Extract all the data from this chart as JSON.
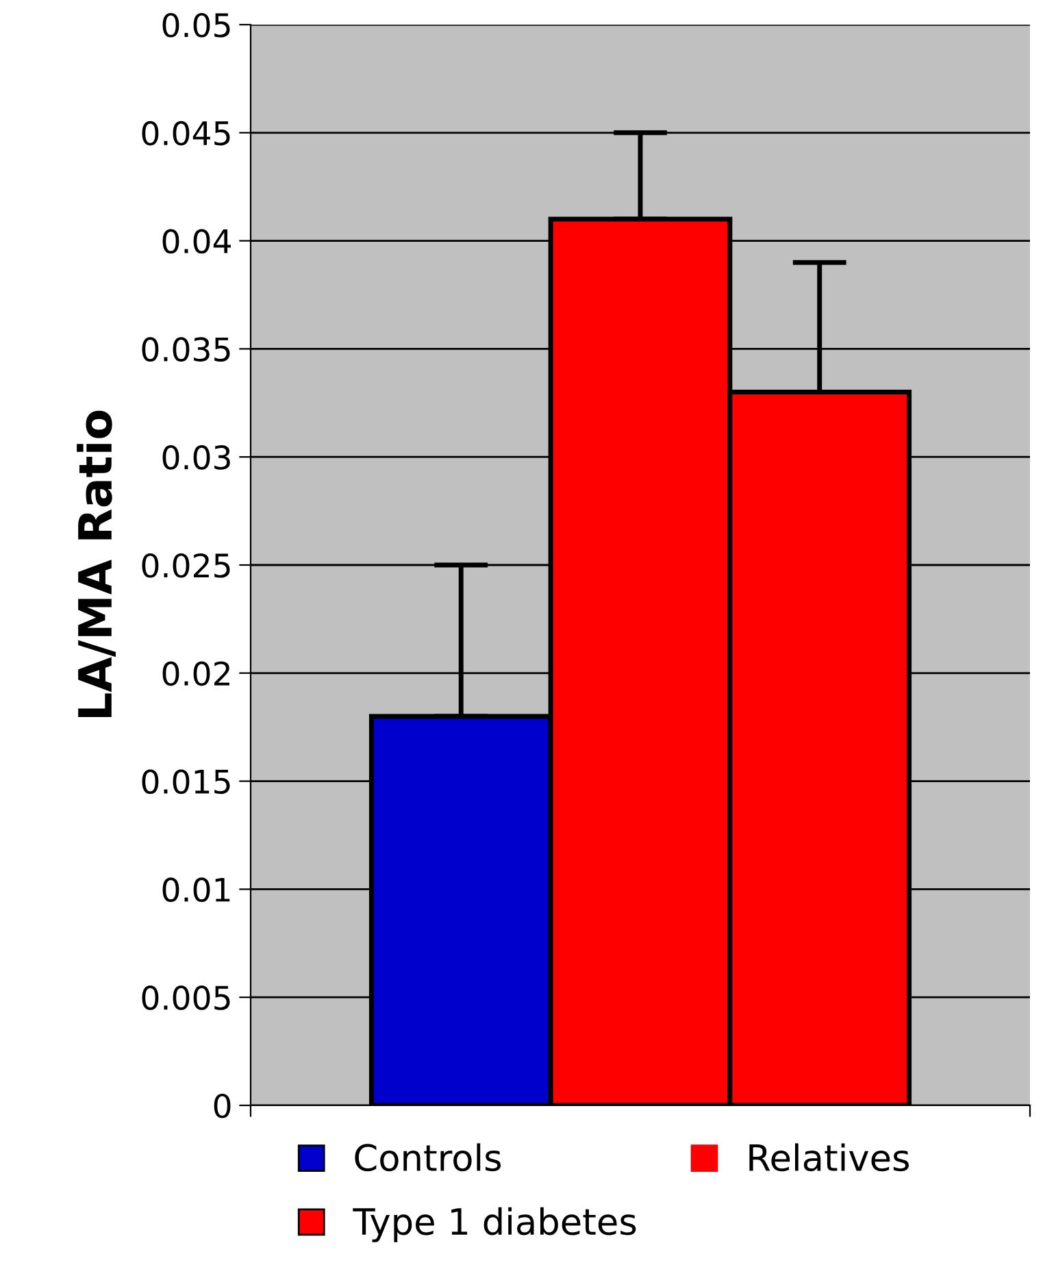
{
  "chart_data": {
    "type": "bar",
    "ylabel": "LA/MA Ratio",
    "categories": [
      null
    ],
    "series": [
      {
        "name": "Controls",
        "color": "#0000cc",
        "values": [
          0.018
        ],
        "errors": [
          [
            0.018,
            0.025
          ]
        ]
      },
      {
        "name": "Type 1 diabetes",
        "color": "#ff0000",
        "values": [
          0.041
        ],
        "errors": [
          [
            0.041,
            0.045
          ]
        ]
      },
      {
        "name": "Relatives",
        "color": "#ff0000",
        "values": [
          0.033
        ],
        "errors": [
          [
            0.033,
            0.039
          ]
        ]
      }
    ],
    "ylim": [
      0,
      0.05
    ],
    "yticks": [
      0,
      0.005,
      0.01,
      0.015,
      0.02,
      0.025,
      0.03,
      0.035,
      0.04,
      0.045,
      0.05
    ],
    "grid": "y",
    "legend": "bottom"
  }
}
